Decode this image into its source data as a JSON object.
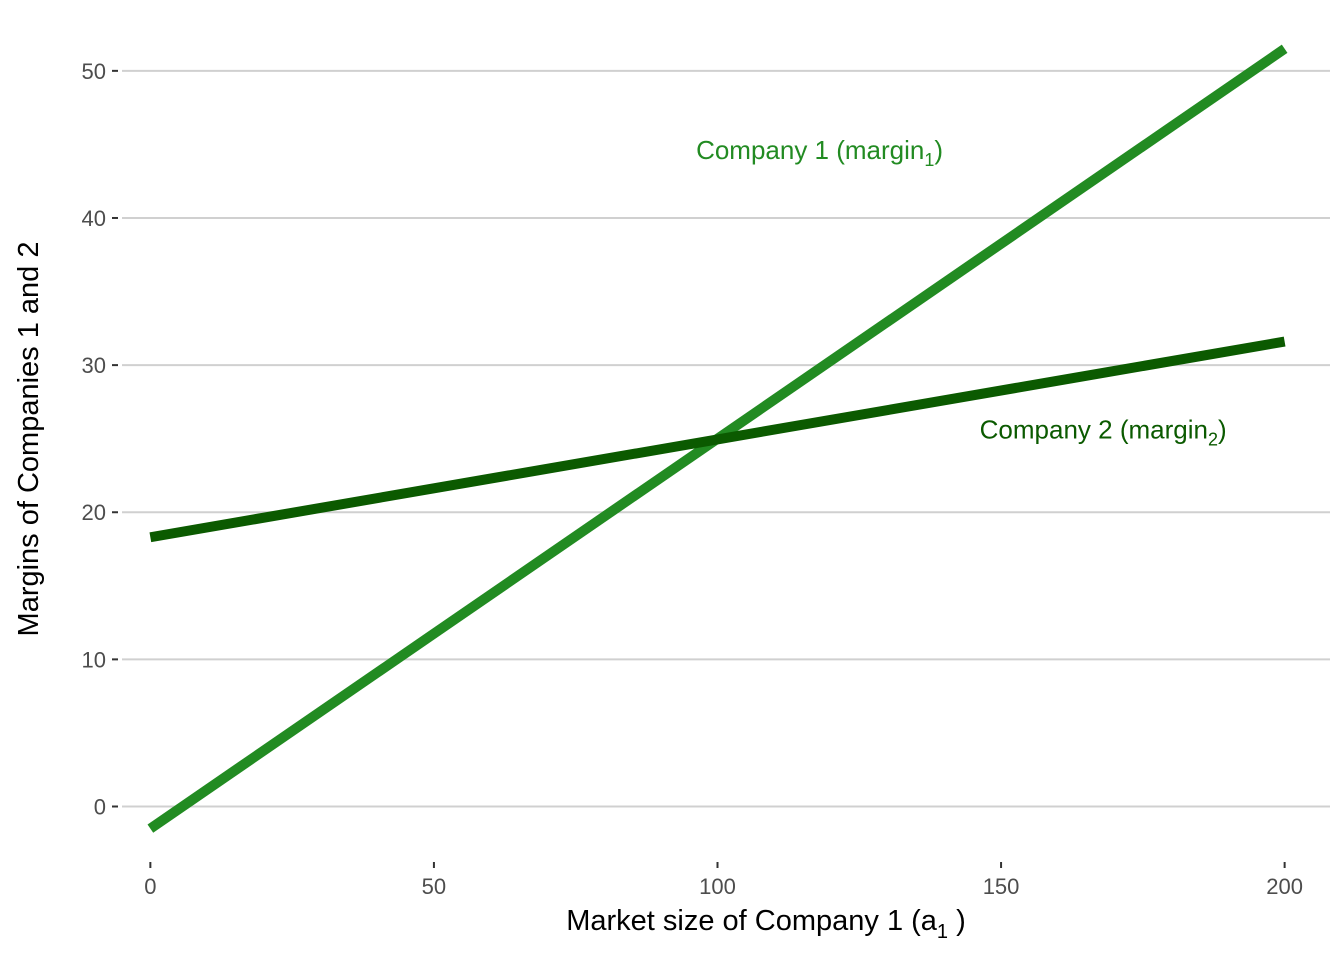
{
  "chart_data": {
    "type": "line",
    "title": "",
    "xlabel": {
      "main": "Market size of Company 1  (a",
      "sub": "1",
      "end": " )"
    },
    "ylabel": "Margins of Companies 1 and 2",
    "xlim": [
      -5,
      208
    ],
    "ylim": [
      -3.5,
      54
    ],
    "xticks": [
      0,
      50,
      100,
      150,
      200
    ],
    "yticks": [
      0,
      10,
      20,
      30,
      40,
      50
    ],
    "grid": "horizontal-major",
    "legend": "none",
    "series": [
      {
        "name": "Company 1 (margin1)",
        "label": {
          "main": "Company 1 (margin",
          "sub": "1",
          "end": ")"
        },
        "label_at": [
          118,
          44
        ],
        "color": "#228b22",
        "x": [
          0,
          200
        ],
        "y": [
          -1.5,
          51.5
        ]
      },
      {
        "name": "Company 2 (margin2)",
        "label": {
          "main": "Company 2 (margin",
          "sub": "2",
          "end": ")"
        },
        "label_at": [
          168,
          25
        ],
        "color": "#0b5a00",
        "x": [
          0,
          200
        ],
        "y": [
          18.3,
          31.6
        ]
      }
    ]
  }
}
